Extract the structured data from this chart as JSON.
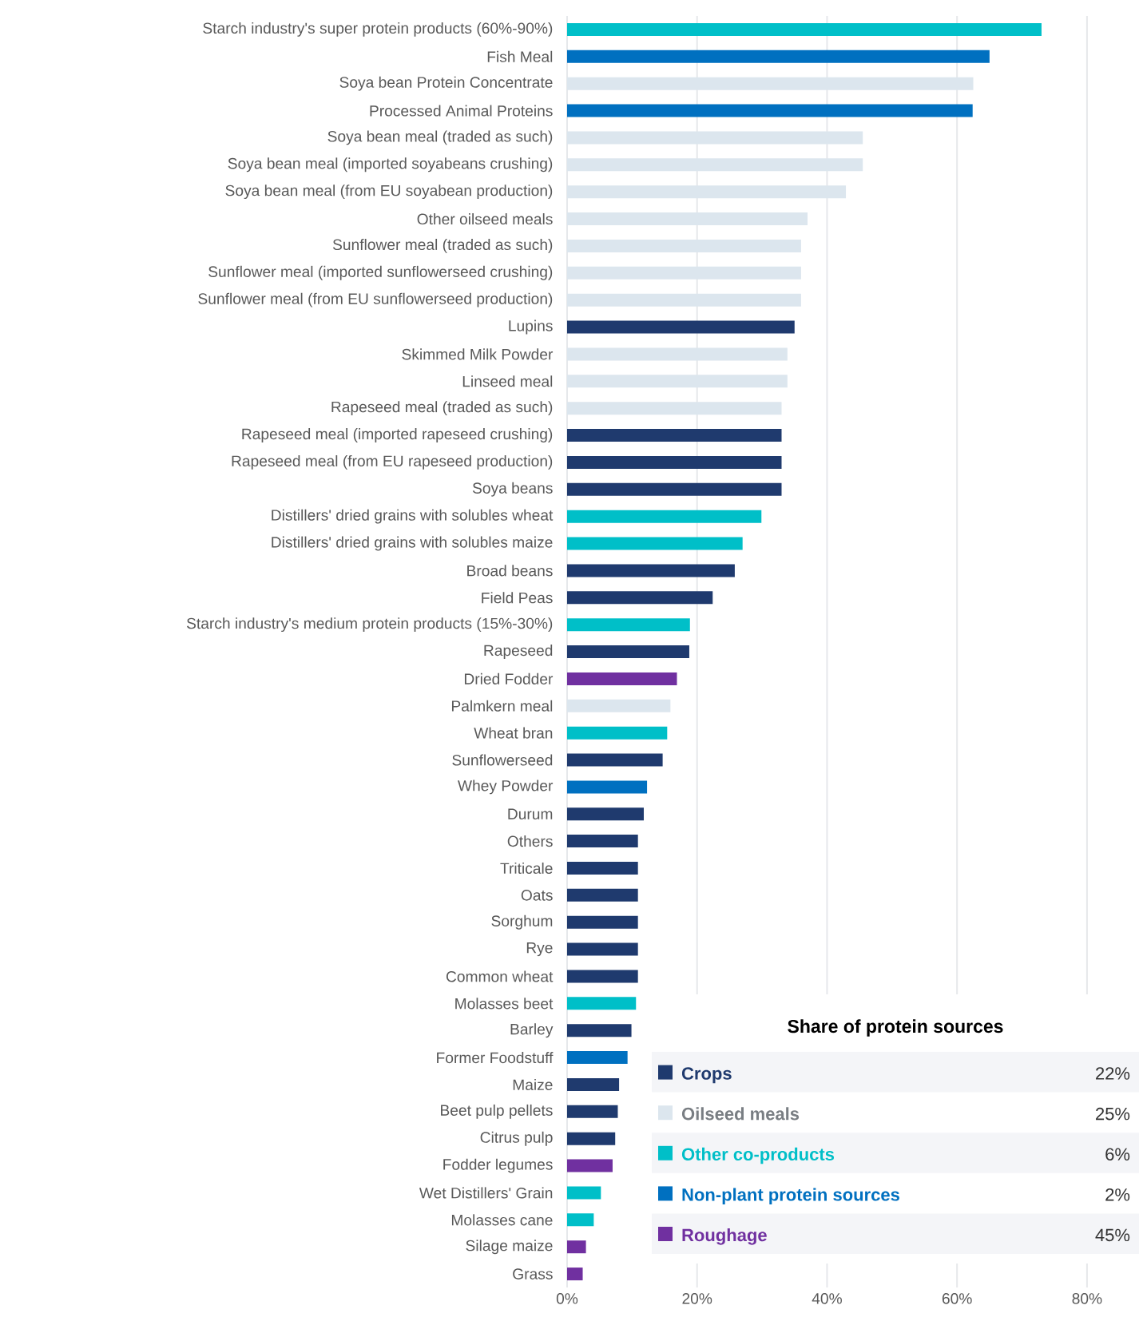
{
  "chart_data": {
    "type": "bar",
    "orientation": "horizontal",
    "categories": [
      "Starch industry's super protein products (60%-90%)",
      "Fish Meal",
      "Soya bean Protein Concentrate",
      "Processed Animal Proteins",
      "Soya bean meal (traded as such)",
      "Soya bean meal (imported soyabeans crushing)",
      "Soya bean meal (from EU soyabean production)",
      "Other oilseed meals",
      "Sunflower meal (traded as such)",
      "Sunflower meal (imported sunflowerseed crushing)",
      "Sunflower meal (from EU sunflowerseed production)",
      "Lupins",
      "Skimmed Milk Powder",
      "Linseed meal",
      "Rapeseed meal (traded as such)",
      "Rapeseed meal (imported rapeseed crushing)",
      "Rapeseed meal (from EU rapeseed production)",
      "Soya beans",
      "Distillers' dried grains with solubles wheat",
      "Distillers' dried grains with solubles maize",
      "Broad beans",
      "Field Peas",
      "Starch industry's medium protein products (15%-30%)",
      "Rapeseed",
      "Dried Fodder",
      "Palmkern meal",
      "Wheat bran",
      "Sunflowerseed",
      "Whey Powder",
      "Durum",
      "Others",
      "Triticale",
      "Oats",
      "Sorghum",
      "Rye",
      "Common wheat",
      "Molasses beet",
      "Barley",
      "Former Foodstuff",
      "Maize",
      "Beet pulp pellets",
      "Citrus pulp",
      "Fodder legumes",
      "Wet Distillers' Grain",
      "Molasses cane",
      "Silage maize",
      "Grass"
    ],
    "series": [
      {
        "name": "Crops",
        "color": "#1f3a6e",
        "values": [
          null,
          null,
          null,
          null,
          null,
          null,
          null,
          null,
          null,
          null,
          null,
          35.0,
          null,
          null,
          null,
          33.0,
          33.0,
          33.0,
          null,
          null,
          25.8,
          22.4,
          null,
          18.8,
          null,
          null,
          null,
          14.7,
          null,
          11.8,
          10.9,
          10.9,
          10.9,
          10.9,
          10.9,
          10.9,
          null,
          9.9,
          null,
          8.0,
          7.8,
          7.4,
          null,
          null,
          null,
          null,
          null
        ]
      },
      {
        "name": "Oilseed meals",
        "color": "#dce6ee",
        "values": [
          null,
          null,
          62.5,
          null,
          45.5,
          45.5,
          42.9,
          37.0,
          36.0,
          36.0,
          36.0,
          null,
          33.9,
          33.9,
          33.0,
          null,
          null,
          null,
          null,
          null,
          null,
          null,
          null,
          null,
          null,
          15.9,
          null,
          null,
          null,
          null,
          null,
          null,
          null,
          null,
          null,
          null,
          null,
          null,
          null,
          null,
          null,
          null,
          null,
          null,
          null,
          null,
          null
        ]
      },
      {
        "name": "Other co-products",
        "color": "#00bfc8",
        "values": [
          73.0,
          null,
          null,
          null,
          null,
          null,
          null,
          null,
          null,
          null,
          null,
          null,
          null,
          null,
          null,
          null,
          null,
          null,
          29.9,
          27.0,
          null,
          null,
          18.9,
          null,
          null,
          null,
          15.4,
          null,
          null,
          null,
          null,
          null,
          null,
          null,
          null,
          null,
          10.6,
          null,
          null,
          null,
          null,
          null,
          null,
          5.2,
          4.1,
          null,
          null
        ]
      },
      {
        "name": "Non-plant protein sources",
        "color": "#0070c0",
        "values": [
          null,
          65.0,
          null,
          62.4,
          null,
          null,
          null,
          null,
          null,
          null,
          null,
          null,
          null,
          null,
          null,
          null,
          null,
          null,
          null,
          null,
          null,
          null,
          null,
          null,
          null,
          null,
          null,
          null,
          12.3,
          null,
          null,
          null,
          null,
          null,
          null,
          null,
          null,
          null,
          9.3,
          null,
          null,
          null,
          null,
          null,
          null,
          null,
          null
        ]
      },
      {
        "name": "Roughage",
        "color": "#7030a0",
        "values": [
          null,
          null,
          null,
          null,
          null,
          null,
          null,
          null,
          null,
          null,
          null,
          null,
          null,
          null,
          null,
          null,
          null,
          null,
          null,
          null,
          null,
          null,
          null,
          null,
          16.9,
          null,
          null,
          null,
          null,
          null,
          null,
          null,
          null,
          null,
          null,
          null,
          null,
          null,
          null,
          null,
          null,
          null,
          7.0,
          null,
          null,
          2.9,
          2.4
        ]
      }
    ],
    "xlim": [
      0,
      88
    ],
    "xticks": [
      {
        "value": 0,
        "label": "0%"
      },
      {
        "value": 20,
        "label": "20%"
      },
      {
        "value": 40,
        "label": "40%"
      },
      {
        "value": 60,
        "label": "60%"
      },
      {
        "value": 80,
        "label": "80%"
      }
    ],
    "grid": "x",
    "legend": "bottom",
    "legend_title": "Share of protein sources",
    "annotations": [
      "22%",
      "25%",
      "6%",
      "2%",
      "45%"
    ]
  }
}
